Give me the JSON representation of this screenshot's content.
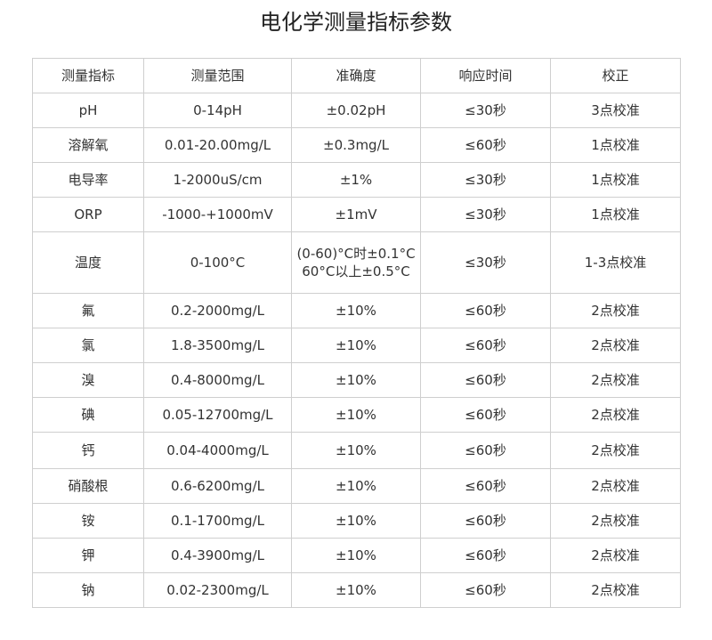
{
  "title": "电化学测量指标参数",
  "table": {
    "headers": [
      "测量指标",
      "测量范围",
      "准确度",
      "响应时间",
      "校正"
    ],
    "rows": [
      [
        "pH",
        "0-14pH",
        "±0.02pH",
        "≤30秒",
        "3点校准"
      ],
      [
        "溶解氧",
        "0.01-20.00mg/L",
        "±0.3mg/L",
        "≤60秒",
        "1点校准"
      ],
      [
        "电导率",
        "1-2000uS/cm",
        "±1%",
        "≤30秒",
        "1点校准"
      ],
      [
        "ORP",
        "-1000-+1000mV",
        "±1mV",
        "≤30秒",
        "1点校准"
      ],
      [
        "温度",
        "0-100°C",
        "(0-60)°C时±0.1°C\n60°C以上±0.5°C",
        "≤30秒",
        "1-3点校准"
      ],
      [
        "氟",
        "0.2-2000mg/L",
        "±10%",
        "≤60秒",
        "2点校准"
      ],
      [
        "氯",
        "1.8-3500mg/L",
        "±10%",
        "≤60秒",
        "2点校准"
      ],
      [
        "溴",
        "0.4-8000mg/L",
        "±10%",
        "≤60秒",
        "2点校准"
      ],
      [
        "碘",
        "0.05-12700mg/L",
        "±10%",
        "≤60秒",
        "2点校准"
      ],
      [
        "钙",
        "0.04-4000mg/L",
        "±10%",
        "≤60秒",
        "2点校准"
      ],
      [
        "硝酸根",
        "0.6-6200mg/L",
        "±10%",
        "≤60秒",
        "2点校准"
      ],
      [
        "铵",
        "0.1-1700mg/L",
        "±10%",
        "≤60秒",
        "2点校准"
      ],
      [
        "钾",
        "0.4-3900mg/L",
        "±10%",
        "≤60秒",
        "2点校准"
      ],
      [
        "钠",
        "0.02-2300mg/L",
        "±10%",
        "≤60秒",
        "2点校准"
      ]
    ]
  }
}
